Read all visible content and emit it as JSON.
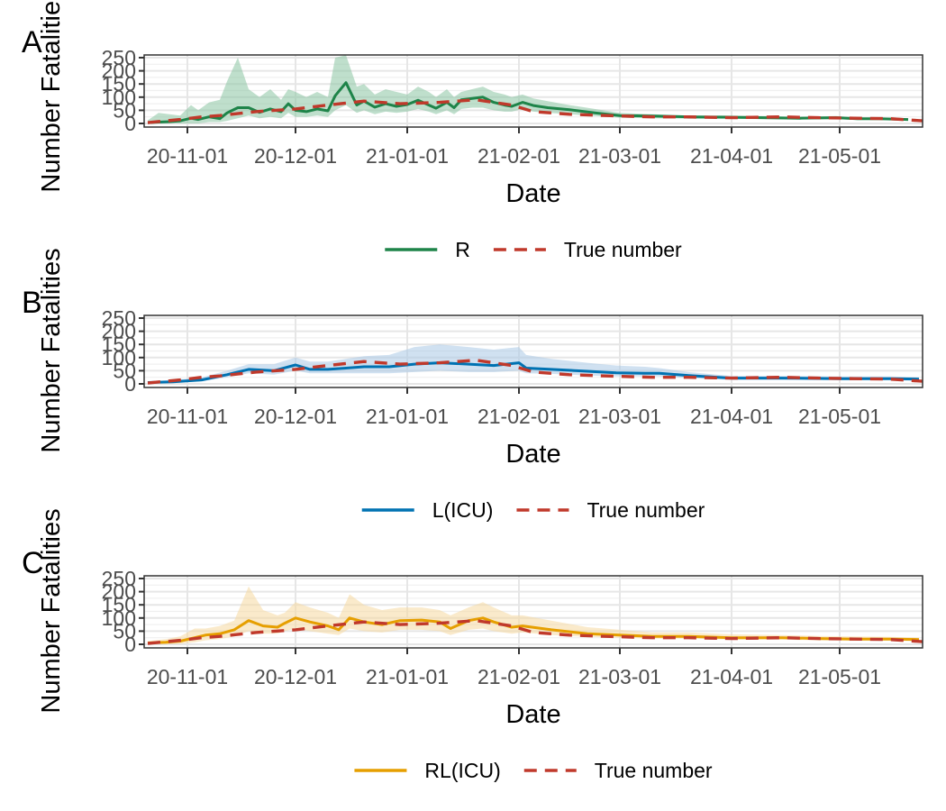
{
  "chart_data": [
    {
      "type": "line",
      "panel_label": "A",
      "xlabel": "Date",
      "ylabel": "Number Fatalities",
      "ylim": [
        0,
        250
      ],
      "yticks": [
        0,
        50,
        100,
        150,
        200,
        250
      ],
      "xticks": [
        "20-11-01",
        "20-12-01",
        "21-01-01",
        "21-02-01",
        "21-03-01",
        "21-04-01",
        "21-05-01"
      ],
      "xlim": [
        "2020-10-20",
        "2021-05-24"
      ],
      "grid": true,
      "legend": "bottom",
      "colors": {
        "model": "#1e8449",
        "band": "#8bc4a2",
        "true": "#c0392b"
      },
      "series": [
        {
          "name": "R",
          "style": "solid",
          "x": [
            "2020-10-21",
            "2020-10-24",
            "2020-10-27",
            "2020-10-30",
            "2020-11-02",
            "2020-11-04",
            "2020-11-07",
            "2020-11-10",
            "2020-11-12",
            "2020-11-15",
            "2020-11-18",
            "2020-11-21",
            "2020-11-24",
            "2020-11-27",
            "2020-11-29",
            "2020-12-01",
            "2020-12-04",
            "2020-12-07",
            "2020-12-10",
            "2020-12-12",
            "2020-12-15",
            "2020-12-18",
            "2020-12-20",
            "2020-12-23",
            "2020-12-26",
            "2020-12-29",
            "2021-01-01",
            "2021-01-04",
            "2021-01-07",
            "2021-01-09",
            "2021-01-12",
            "2021-01-14",
            "2021-01-16",
            "2021-01-19",
            "2021-01-22",
            "2021-01-25",
            "2021-01-28",
            "2021-01-30",
            "2021-02-02",
            "2021-02-05",
            "2021-02-09",
            "2021-02-15",
            "2021-02-22",
            "2021-03-01",
            "2021-03-10",
            "2021-03-20",
            "2021-03-30",
            "2021-04-10",
            "2021-04-20",
            "2021-04-30",
            "2021-05-06",
            "2021-05-12",
            "2021-05-20"
          ],
          "y": [
            3,
            5,
            7,
            10,
            20,
            15,
            25,
            18,
            40,
            60,
            60,
            42,
            55,
            45,
            75,
            50,
            45,
            55,
            48,
            105,
            155,
            70,
            85,
            62,
            75,
            65,
            72,
            88,
            70,
            58,
            80,
            60,
            90,
            95,
            100,
            80,
            70,
            65,
            80,
            68,
            60,
            52,
            40,
            30,
            28,
            25,
            24,
            22,
            20,
            22,
            18,
            18,
            15
          ],
          "band_upper": [
            12,
            40,
            35,
            30,
            70,
            50,
            80,
            90,
            160,
            250,
            130,
            100,
            130,
            90,
            130,
            120,
            100,
            120,
            100,
            250,
            260,
            140,
            150,
            110,
            130,
            120,
            110,
            140,
            120,
            100,
            130,
            100,
            120,
            130,
            140,
            120,
            110,
            100,
            110,
            95,
            85,
            70,
            55,
            40,
            35,
            30,
            30,
            28,
            25,
            28,
            22,
            22,
            20
          ],
          "band_lower": [
            0,
            0,
            0,
            0,
            0,
            0,
            5,
            5,
            10,
            20,
            30,
            20,
            25,
            20,
            40,
            25,
            25,
            30,
            25,
            50,
            70,
            40,
            50,
            35,
            45,
            40,
            45,
            55,
            45,
            35,
            50,
            35,
            55,
            60,
            60,
            50,
            45,
            45,
            55,
            45,
            40,
            35,
            28,
            22,
            20,
            18,
            18,
            16,
            15,
            16,
            13,
            13,
            10
          ]
        },
        {
          "name": "True number",
          "style": "dashed",
          "x": [
            "2020-10-21",
            "2020-10-30",
            "2020-11-05",
            "2020-11-10",
            "2020-11-20",
            "2020-12-01",
            "2020-12-10",
            "2020-12-20",
            "2020-12-30",
            "2021-01-10",
            "2021-01-20",
            "2021-01-30",
            "2021-02-05",
            "2021-02-15",
            "2021-02-25",
            "2021-03-10",
            "2021-03-20",
            "2021-04-01",
            "2021-04-15",
            "2021-04-25",
            "2021-05-05",
            "2021-05-15",
            "2021-05-24"
          ],
          "y": [
            3,
            15,
            25,
            30,
            45,
            55,
            70,
            85,
            75,
            80,
            90,
            70,
            45,
            35,
            30,
            25,
            25,
            22,
            25,
            22,
            20,
            18,
            10
          ]
        }
      ]
    },
    {
      "type": "line",
      "panel_label": "B",
      "xlabel": "Date",
      "ylabel": "Number Fatalities",
      "ylim": [
        0,
        250
      ],
      "yticks": [
        0,
        50,
        100,
        150,
        200,
        250
      ],
      "xticks": [
        "20-11-01",
        "20-12-01",
        "21-01-01",
        "21-02-01",
        "21-03-01",
        "21-04-01",
        "21-05-01"
      ],
      "xlim": [
        "2020-10-20",
        "2021-05-24"
      ],
      "grid": true,
      "legend": "bottom",
      "colors": {
        "model": "#0072b2",
        "band": "#a9c8e6",
        "true": "#c0392b"
      },
      "series": [
        {
          "name": "L(ICU)",
          "style": "solid",
          "x": [
            "2020-10-21",
            "2020-10-28",
            "2020-11-05",
            "2020-11-12",
            "2020-11-18",
            "2020-11-25",
            "2020-12-01",
            "2020-12-05",
            "2020-12-10",
            "2020-12-15",
            "2020-12-20",
            "2020-12-27",
            "2021-01-03",
            "2021-01-10",
            "2021-01-18",
            "2021-01-25",
            "2021-02-01",
            "2021-02-03",
            "2021-02-10",
            "2021-02-20",
            "2021-02-28",
            "2021-03-08",
            "2021-03-12",
            "2021-03-20",
            "2021-04-01",
            "2021-04-15",
            "2021-05-01",
            "2021-05-15",
            "2021-05-23"
          ],
          "y": [
            5,
            8,
            15,
            35,
            55,
            50,
            72,
            55,
            55,
            60,
            65,
            65,
            75,
            80,
            75,
            70,
            80,
            60,
            55,
            48,
            42,
            40,
            40,
            32,
            22,
            22,
            20,
            20,
            18
          ],
          "band_upper": [
            10,
            15,
            25,
            50,
            75,
            75,
            100,
            85,
            85,
            95,
            105,
            110,
            140,
            150,
            140,
            130,
            140,
            110,
            95,
            80,
            70,
            65,
            60,
            45,
            30,
            30,
            28,
            28,
            25
          ],
          "band_lower": [
            2,
            4,
            10,
            25,
            40,
            35,
            50,
            40,
            40,
            40,
            40,
            40,
            45,
            50,
            45,
            45,
            50,
            40,
            38,
            32,
            28,
            28,
            28,
            22,
            15,
            15,
            14,
            14,
            12
          ]
        },
        {
          "name": "True number",
          "style": "dashed",
          "x": [
            "2020-10-21",
            "2020-10-30",
            "2020-11-05",
            "2020-11-10",
            "2020-11-20",
            "2020-12-01",
            "2020-12-10",
            "2020-12-20",
            "2020-12-30",
            "2021-01-10",
            "2021-01-20",
            "2021-01-30",
            "2021-02-05",
            "2021-02-15",
            "2021-02-25",
            "2021-03-10",
            "2021-03-20",
            "2021-04-01",
            "2021-04-15",
            "2021-04-25",
            "2021-05-05",
            "2021-05-15",
            "2021-05-24"
          ],
          "y": [
            3,
            15,
            25,
            30,
            45,
            55,
            70,
            85,
            75,
            80,
            90,
            70,
            45,
            35,
            30,
            25,
            25,
            22,
            25,
            22,
            20,
            18,
            10
          ]
        }
      ]
    },
    {
      "type": "line",
      "panel_label": "C",
      "xlabel": "Date",
      "ylabel": "Number Fatalities",
      "ylim": [
        0,
        250
      ],
      "yticks": [
        0,
        50,
        100,
        150,
        200,
        250
      ],
      "xticks": [
        "20-11-01",
        "20-12-01",
        "21-01-01",
        "21-02-01",
        "21-03-01",
        "21-04-01",
        "21-05-01"
      ],
      "xlim": [
        "2020-10-20",
        "2021-05-24"
      ],
      "grid": true,
      "legend": "bottom",
      "colors": {
        "model": "#e69f00",
        "band": "#f5d9a0",
        "true": "#c0392b"
      },
      "series": [
        {
          "name": "RL(ICU)",
          "style": "solid",
          "x": [
            "2020-10-21",
            "2020-10-26",
            "2020-10-30",
            "2020-11-03",
            "2020-11-06",
            "2020-11-10",
            "2020-11-14",
            "2020-11-18",
            "2020-11-22",
            "2020-11-26",
            "2020-11-28",
            "2020-12-01",
            "2020-12-05",
            "2020-12-10",
            "2020-12-13",
            "2020-12-16",
            "2020-12-20",
            "2020-12-25",
            "2020-12-30",
            "2021-01-05",
            "2021-01-10",
            "2021-01-13",
            "2021-01-18",
            "2021-01-22",
            "2021-01-25",
            "2021-01-30",
            "2021-02-02",
            "2021-02-10",
            "2021-02-20",
            "2021-03-01",
            "2021-03-10",
            "2021-03-20",
            "2021-04-01",
            "2021-04-15",
            "2021-04-25",
            "2021-05-05",
            "2021-05-15",
            "2021-05-23"
          ],
          "y": [
            5,
            8,
            12,
            25,
            35,
            40,
            55,
            90,
            70,
            65,
            80,
            100,
            85,
            70,
            55,
            100,
            85,
            75,
            90,
            92,
            85,
            60,
            90,
            100,
            85,
            65,
            70,
            55,
            40,
            35,
            30,
            30,
            25,
            25,
            22,
            20,
            20,
            18
          ],
          "band_upper": [
            12,
            20,
            30,
            60,
            60,
            70,
            90,
            220,
            130,
            110,
            120,
            160,
            140,
            120,
            100,
            190,
            150,
            130,
            140,
            140,
            130,
            110,
            140,
            160,
            140,
            110,
            110,
            90,
            65,
            55,
            45,
            45,
            38,
            35,
            32,
            30,
            28,
            25
          ],
          "band_lower": [
            0,
            0,
            2,
            8,
            15,
            20,
            30,
            50,
            40,
            40,
            50,
            60,
            50,
            40,
            35,
            60,
            50,
            45,
            55,
            55,
            50,
            35,
            55,
            60,
            50,
            40,
            45,
            35,
            28,
            25,
            22,
            22,
            18,
            18,
            15,
            14,
            14,
            12
          ]
        },
        {
          "name": "True number",
          "style": "dashed",
          "x": [
            "2020-10-21",
            "2020-10-30",
            "2020-11-05",
            "2020-11-10",
            "2020-11-20",
            "2020-12-01",
            "2020-12-10",
            "2020-12-20",
            "2020-12-30",
            "2021-01-10",
            "2021-01-20",
            "2021-01-30",
            "2021-02-05",
            "2021-02-15",
            "2021-02-25",
            "2021-03-10",
            "2021-03-20",
            "2021-04-01",
            "2021-04-15",
            "2021-04-25",
            "2021-05-05",
            "2021-05-15",
            "2021-05-24"
          ],
          "y": [
            3,
            15,
            25,
            30,
            45,
            55,
            70,
            85,
            75,
            80,
            90,
            70,
            45,
            35,
            30,
            25,
            25,
            22,
            25,
            22,
            20,
            18,
            10
          ]
        }
      ]
    }
  ]
}
